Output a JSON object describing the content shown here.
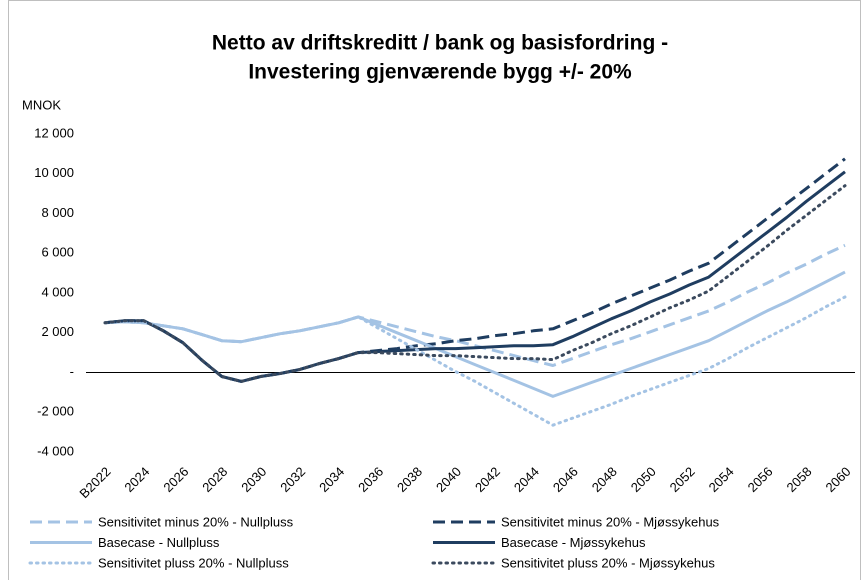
{
  "chart_data": {
    "type": "line",
    "title": [
      "Netto av driftskreditt / bank og basisfordring -",
      "Investering gjenværende bygg +/- 20%"
    ],
    "y_label": "MNOK",
    "categories": [
      "B2022",
      null,
      "2024",
      null,
      "2026",
      null,
      "2028",
      null,
      "2030",
      null,
      "2032",
      null,
      "2034",
      null,
      "2036",
      null,
      "2038",
      null,
      "2040",
      null,
      "2042",
      null,
      "2044",
      null,
      "2046",
      null,
      "2048",
      null,
      "2050",
      null,
      "2052",
      null,
      "2054",
      null,
      "2056",
      null,
      "2058",
      null,
      "2060"
    ],
    "ylim": [
      -4000,
      12000
    ],
    "yticks": [
      {
        "value": -4000,
        "label": "-4 000"
      },
      {
        "value": -2000,
        "label": "-2 000"
      },
      {
        "value": 0,
        "label": "-"
      },
      {
        "value": 2000,
        "label": "2 000"
      },
      {
        "value": 4000,
        "label": "4 000"
      },
      {
        "value": 6000,
        "label": "6 000"
      },
      {
        "value": 8000,
        "label": "8 000"
      },
      {
        "value": 10000,
        "label": "10 000"
      },
      {
        "value": 12000,
        "label": "12 000"
      }
    ],
    "grid": false,
    "series": [
      {
        "name": "Sensitivitet minus 20% - Nullpluss",
        "color": "#a4c3e4",
        "dash": "dashed",
        "values": [
          2500,
          2550,
          2500,
          2350,
          2200,
          1900,
          1600,
          1550,
          1750,
          1950,
          2100,
          2300,
          2500,
          2800,
          2550,
          2300,
          2050,
          1800,
          1600,
          1350,
          1100,
          850,
          600,
          350,
          700,
          1050,
          1400,
          1700,
          2050,
          2400,
          2750,
          3100,
          3550,
          4050,
          4500,
          5000,
          5450,
          5950,
          6400
        ]
      },
      {
        "name": "Sensitivitet minus 20% - Mjøssykehus",
        "color": "#1f3d60",
        "dash": "dashed",
        "values": [
          2500,
          2600,
          2600,
          2100,
          1500,
          600,
          -200,
          -450,
          -200,
          -50,
          150,
          450,
          700,
          1000,
          1100,
          1200,
          1350,
          1450,
          1600,
          1700,
          1850,
          1950,
          2100,
          2200,
          2600,
          3000,
          3450,
          3850,
          4250,
          4650,
          5100,
          5500,
          6250,
          7000,
          7750,
          8500,
          9250,
          10000,
          10750
        ]
      },
      {
        "name": "Basecase - Nullpluss",
        "color": "#a4c3e4",
        "dash": "solid",
        "values": [
          2500,
          2550,
          2500,
          2350,
          2200,
          1900,
          1600,
          1550,
          1750,
          1950,
          2100,
          2300,
          2500,
          2800,
          2400,
          2000,
          1600,
          1200,
          800,
          400,
          0,
          -400,
          -800,
          -1200,
          -850,
          -500,
          -150,
          200,
          550,
          900,
          1250,
          1600,
          2100,
          2600,
          3100,
          3550,
          4050,
          4550,
          5050
        ]
      },
      {
        "name": "Basecase  - Mjøssykehus",
        "color": "#1f3d60",
        "dash": "solid",
        "values": [
          2500,
          2600,
          2600,
          2100,
          1500,
          600,
          -200,
          -450,
          -200,
          -50,
          150,
          450,
          700,
          1000,
          1050,
          1100,
          1150,
          1200,
          1200,
          1250,
          1300,
          1350,
          1350,
          1400,
          1800,
          2250,
          2700,
          3100,
          3550,
          3950,
          4400,
          4800,
          5550,
          6300,
          7050,
          7800,
          8600,
          9350,
          10100
        ]
      },
      {
        "name": "Sensitivitet pluss 20% - Nullpluss",
        "color": "#a4c3e4",
        "dash": "dotted",
        "values": [
          2500,
          2550,
          2500,
          2350,
          2200,
          1900,
          1600,
          1550,
          1750,
          1950,
          2100,
          2300,
          2500,
          2800,
          2250,
          1700,
          1150,
          600,
          50,
          -450,
          -1000,
          -1550,
          -2100,
          -2650,
          -2300,
          -1950,
          -1600,
          -1200,
          -850,
          -500,
          -150,
          200,
          700,
          1250,
          1750,
          2250,
          2750,
          3300,
          3800
        ]
      },
      {
        "name": "Sensitivitet pluss 20% - Mjøssykehus",
        "color": "#3b4a5e",
        "dash": "dotted",
        "values": [
          2500,
          2600,
          2600,
          2100,
          1500,
          600,
          -200,
          -450,
          -200,
          -50,
          150,
          450,
          700,
          1000,
          1000,
          950,
          900,
          850,
          850,
          800,
          750,
          700,
          700,
          650,
          1100,
          1500,
          1950,
          2350,
          2800,
          3250,
          3650,
          4100,
          4850,
          5600,
          6350,
          7150,
          7900,
          8650,
          9400
        ]
      }
    ]
  }
}
